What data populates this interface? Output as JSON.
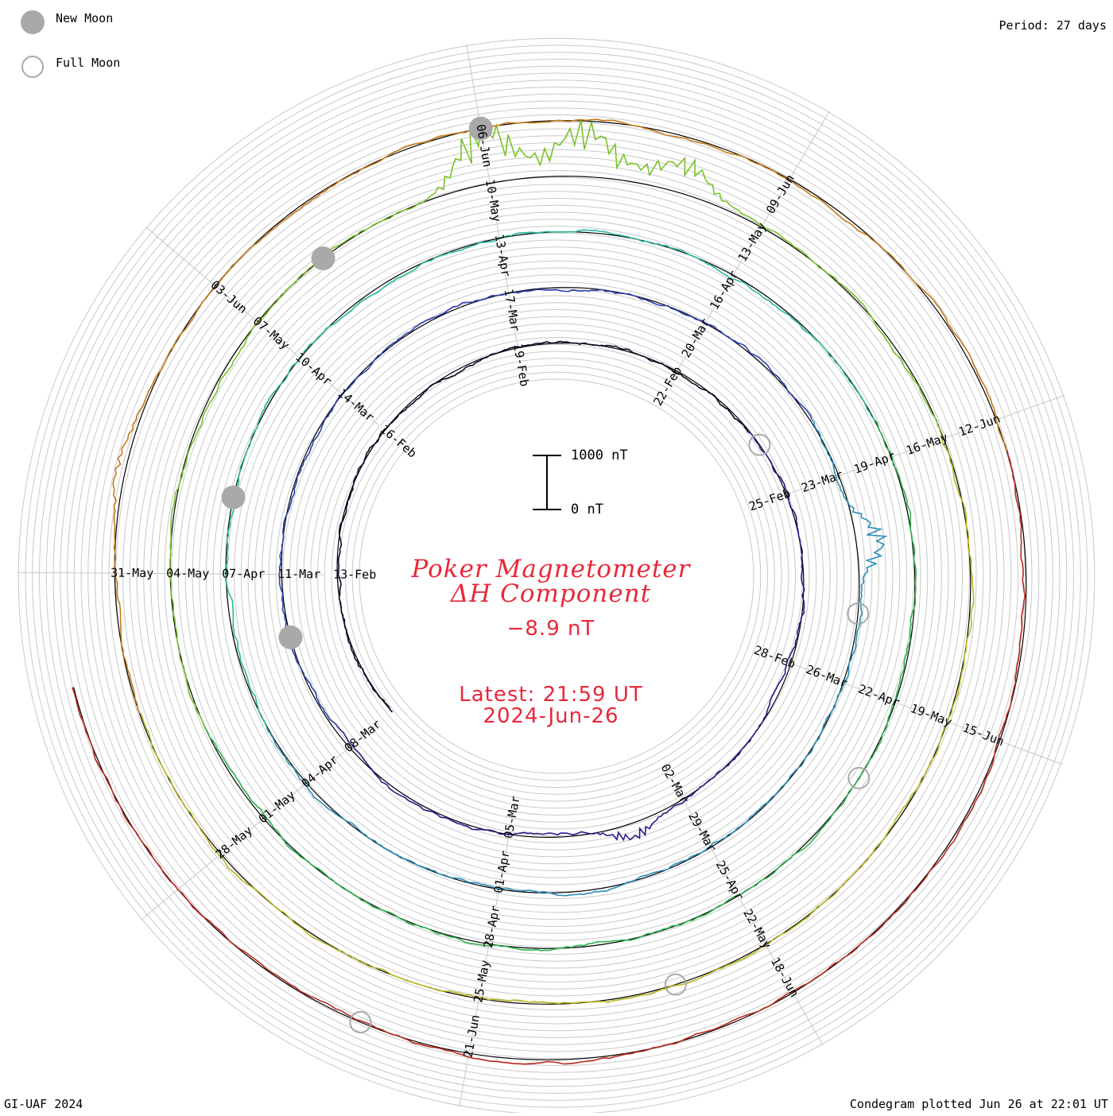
{
  "legend": {
    "new_moon": "New Moon",
    "full_moon": "Full Moon"
  },
  "period_label": "Period: 27 days",
  "scale_bar": {
    "top_label": "1000 nT",
    "bottom_label": "0 nT"
  },
  "title": {
    "line1": "Poker Magnetometer",
    "line2": "ΔH Component",
    "value": "−8.9 nT",
    "latest": "Latest: 21:59 UT",
    "date": "2024-Jun-26"
  },
  "footer": {
    "left": "GI-UAF 2024",
    "right": "Condegram plotted Jun 26 at 22:01 UT"
  },
  "colors": {
    "title": "#e8283a",
    "grid": "#c8c8c8",
    "moon": "#a9a9a9"
  },
  "chart_data": {
    "type": "line",
    "subtype": "condegram spiral (polar, one turn per 27 days)",
    "period_days": 27,
    "start_date": "2024-Feb-10",
    "end_date": "2024-Jun-26",
    "scale_nT_per_ring_spacing": 1000,
    "series_colors": [
      "#0a0a2a",
      "#2a1a8a",
      "#2b3fae",
      "#2a8cb8",
      "#2bb89c",
      "#2fb34f",
      "#7ac12a",
      "#b8b620",
      "#c47a18",
      "#b8281c"
    ],
    "date_labels": [
      "13-Feb",
      "16-Feb",
      "19-Feb",
      "22-Feb",
      "25-Feb",
      "28-Feb",
      "02-Mar",
      "05-Mar",
      "08-Mar",
      "11-Mar",
      "14-Mar",
      "17-Mar",
      "20-Mar",
      "23-Mar",
      "26-Mar",
      "29-Mar",
      "01-Apr",
      "04-Apr",
      "07-Apr",
      "10-Apr",
      "13-Apr",
      "16-Apr",
      "19-Apr",
      "22-Apr",
      "25-Apr",
      "28-Apr",
      "01-May",
      "04-May",
      "07-May",
      "10-May",
      "13-May",
      "16-May",
      "19-May",
      "22-May",
      "25-May",
      "28-May",
      "31-May",
      "03-Jun",
      "06-Jun",
      "09-Jun",
      "12-Jun",
      "15-Jun",
      "18-Jun",
      "21-Jun"
    ],
    "disturbances": [
      {
        "date": "2024-Mar-03",
        "delta_nT": 350
      },
      {
        "date": "2024-Mar-24",
        "delta_nT": 550
      },
      {
        "date": "2024-May-10",
        "delta_nT": 1200
      },
      {
        "date": "2024-May-11",
        "delta_nT": 1100
      },
      {
        "date": "2024-May-12",
        "delta_nT": 650
      },
      {
        "date": "2024-Jun-01",
        "delta_nT": 150
      }
    ],
    "new_moons": [
      "2024-Mar-10",
      "2024-Apr-08",
      "2024-May-08",
      "2024-Jun-06"
    ],
    "full_moons": [
      "2024-Feb-24",
      "2024-Mar-25",
      "2024-Apr-23",
      "2024-May-23",
      "2024-Jun-22"
    ]
  }
}
